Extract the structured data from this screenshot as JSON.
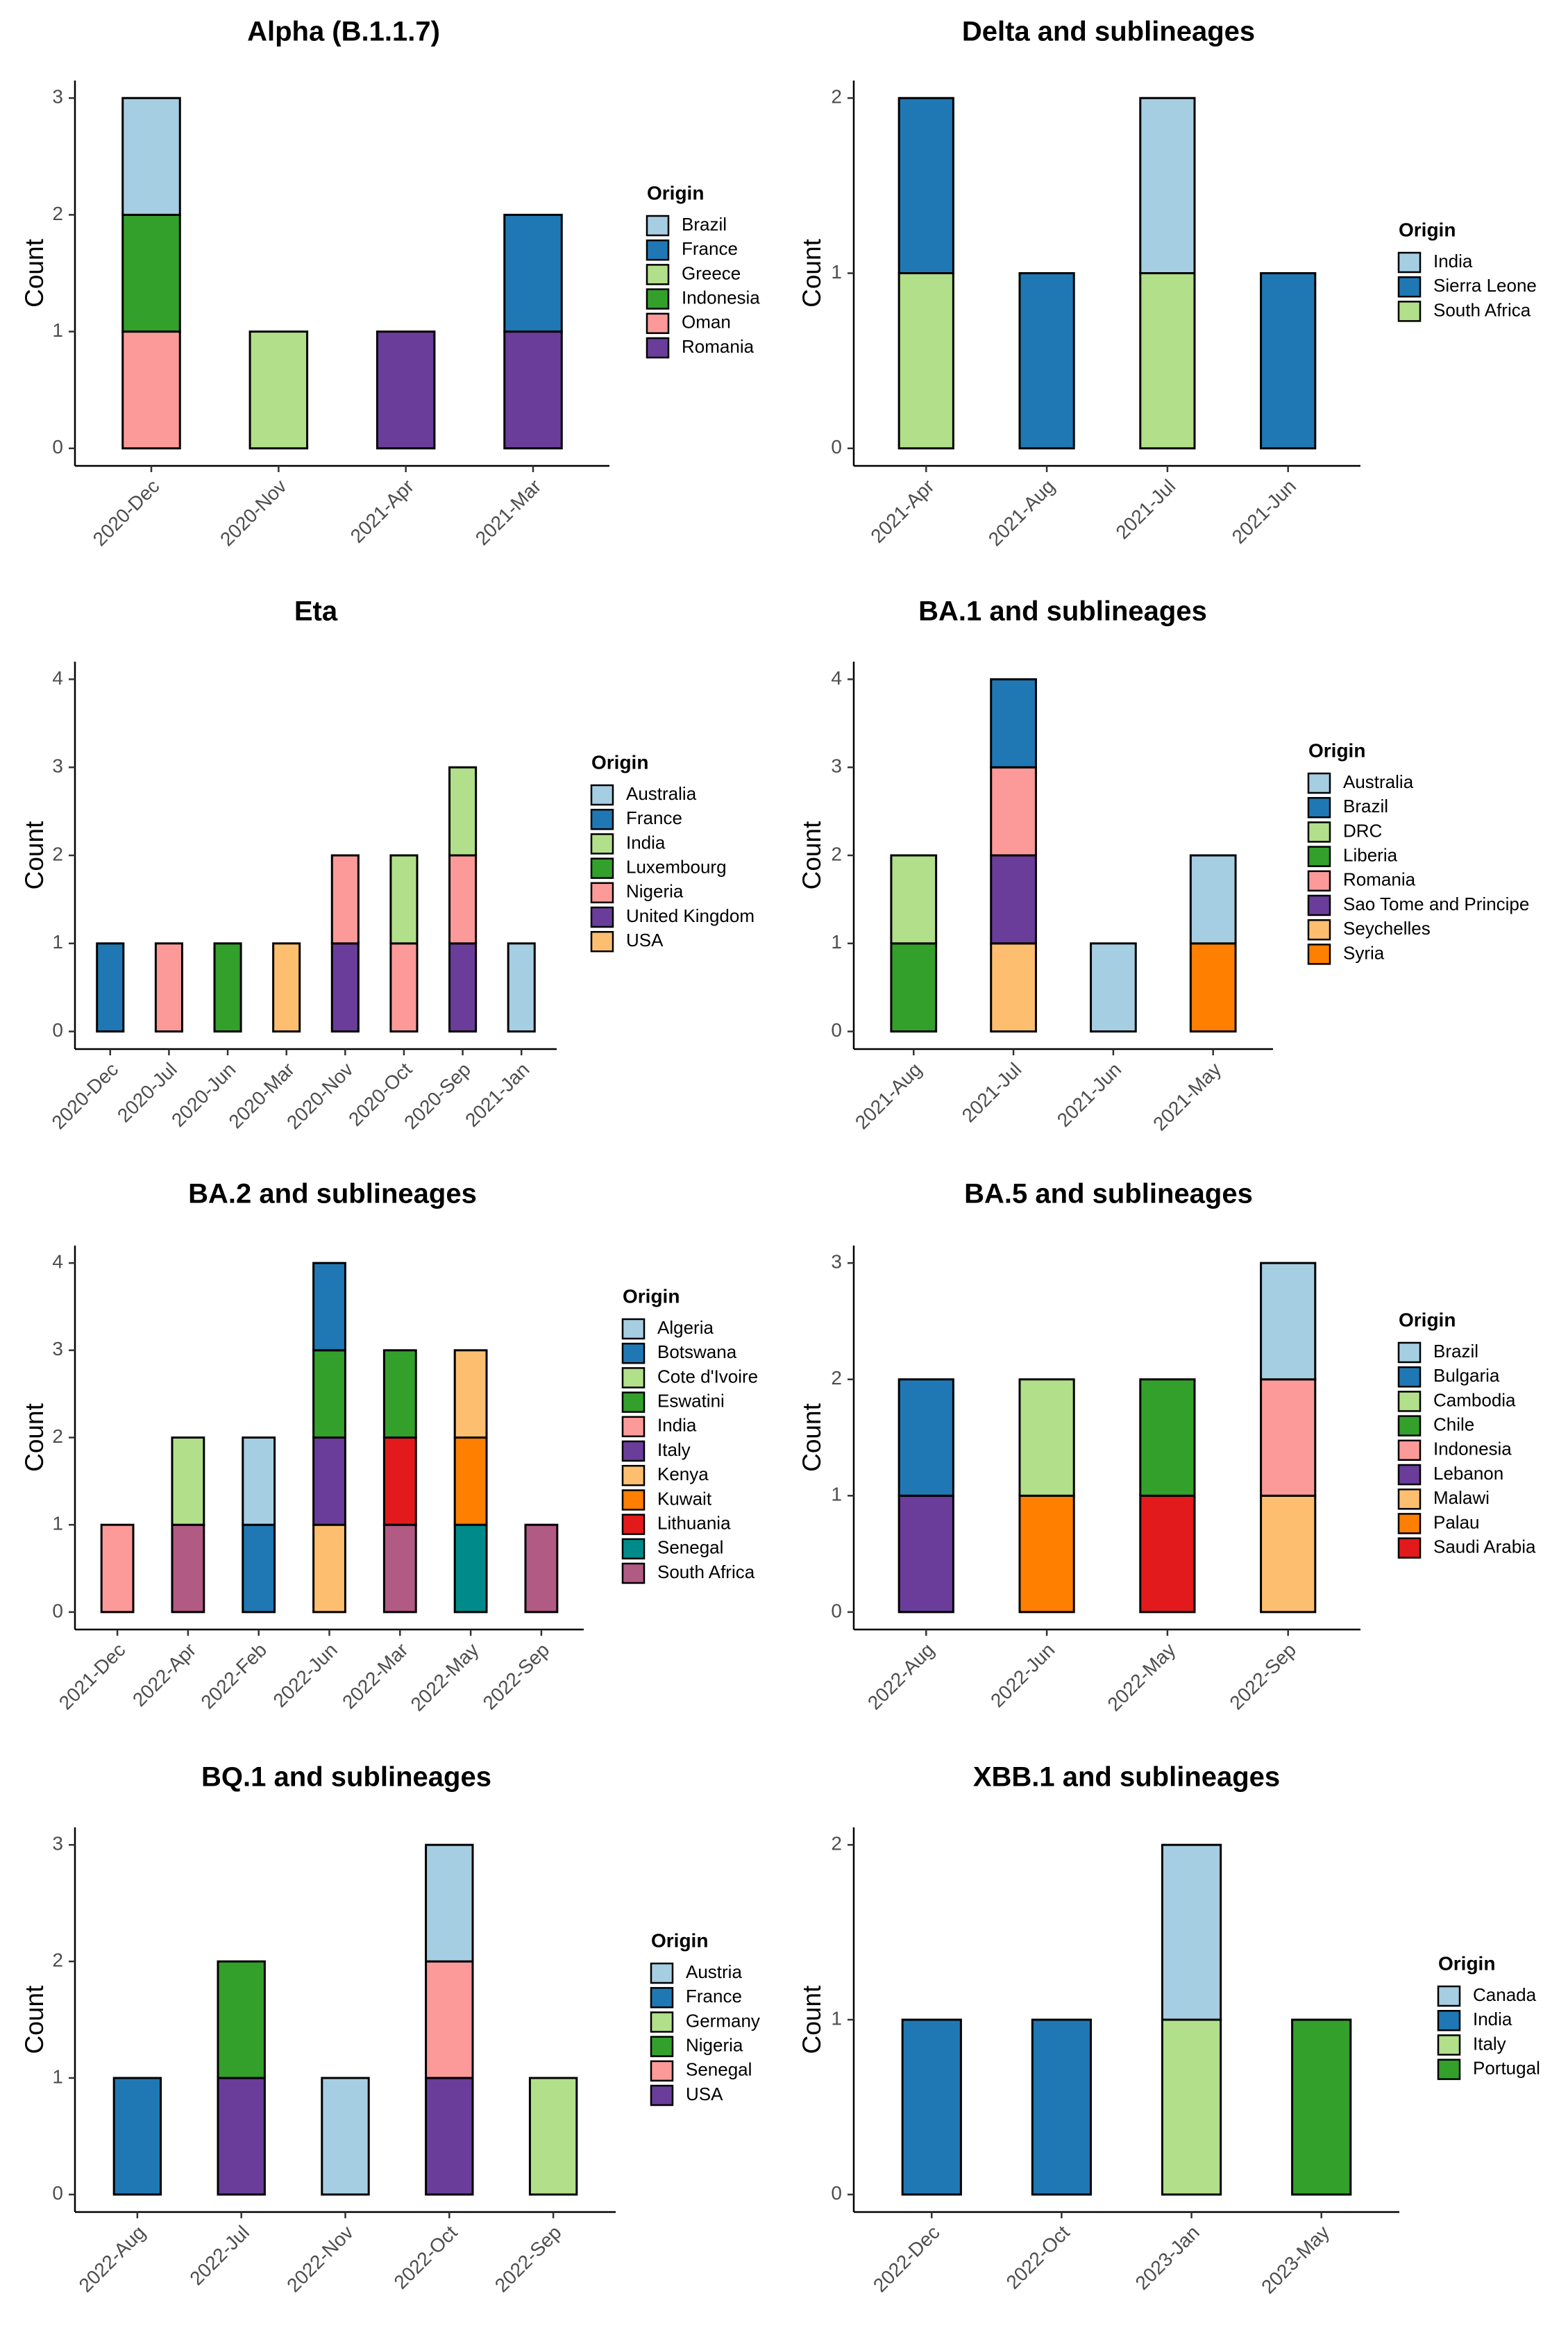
{
  "chart_data": [
    {
      "type": "bar",
      "stacked": true,
      "title": "Alpha (B.1.1.7)",
      "ylabel": "Count",
      "xlabel": "",
      "ylim": [
        0,
        3
      ],
      "yticks": [
        0,
        1,
        2,
        3
      ],
      "categories": [
        "2020-Dec",
        "2020-Nov",
        "2021-Apr",
        "2021-Mar"
      ],
      "legend_title": "Origin",
      "legend": [
        {
          "name": "Brazil",
          "color": "#a6cee3"
        },
        {
          "name": "France",
          "color": "#1f78b4"
        },
        {
          "name": "Greece",
          "color": "#b2df8a"
        },
        {
          "name": "Indonesia",
          "color": "#33a02c"
        },
        {
          "name": "Oman",
          "color": "#fb9a99"
        },
        {
          "name": "Romania",
          "color": "#6a3d9a"
        }
      ],
      "series": [
        {
          "name": "Brazil",
          "values": [
            1,
            0,
            0,
            0
          ]
        },
        {
          "name": "France",
          "values": [
            0,
            0,
            0,
            1
          ]
        },
        {
          "name": "Greece",
          "values": [
            0,
            1,
            0,
            0
          ]
        },
        {
          "name": "Indonesia",
          "values": [
            1,
            0,
            0,
            0
          ]
        },
        {
          "name": "Oman",
          "values": [
            1,
            0,
            0,
            0
          ]
        },
        {
          "name": "Romania",
          "values": [
            0,
            0,
            1,
            1
          ]
        }
      ]
    },
    {
      "type": "bar",
      "stacked": true,
      "title": "Delta and sublineages",
      "ylabel": "Count",
      "xlabel": "",
      "ylim": [
        0,
        2
      ],
      "yticks": [
        0,
        1,
        2
      ],
      "categories": [
        "2021-Apr",
        "2021-Aug",
        "2021-Jul",
        "2021-Jun"
      ],
      "legend_title": "Origin",
      "legend": [
        {
          "name": "India",
          "color": "#a6cee3"
        },
        {
          "name": "Sierra Leone",
          "color": "#1f78b4"
        },
        {
          "name": "South Africa",
          "color": "#b2df8a"
        }
      ],
      "series": [
        {
          "name": "India",
          "values": [
            0,
            0,
            1,
            0
          ]
        },
        {
          "name": "Sierra Leone",
          "values": [
            1,
            1,
            0,
            1
          ]
        },
        {
          "name": "South Africa",
          "values": [
            1,
            0,
            1,
            0
          ]
        }
      ]
    },
    {
      "type": "bar",
      "stacked": true,
      "title": "Eta",
      "ylabel": "Count",
      "xlabel": "",
      "ylim": [
        0,
        4
      ],
      "yticks": [
        0,
        1,
        2,
        3,
        4
      ],
      "categories": [
        "2020-Dec",
        "2020-Jul",
        "2020-Jun",
        "2020-Mar",
        "2020-Nov",
        "2020-Oct",
        "2020-Sep",
        "2021-Jan"
      ],
      "legend_title": "Origin",
      "legend": [
        {
          "name": "Australia",
          "color": "#a6cee3"
        },
        {
          "name": "France",
          "color": "#1f78b4"
        },
        {
          "name": "India",
          "color": "#b2df8a"
        },
        {
          "name": "Luxembourg",
          "color": "#33a02c"
        },
        {
          "name": "Nigeria",
          "color": "#fb9a99"
        },
        {
          "name": "United Kingdom",
          "color": "#6a3d9a"
        },
        {
          "name": "USA",
          "color": "#fdbf6f"
        }
      ],
      "series": [
        {
          "name": "Australia",
          "values": [
            0,
            0,
            0,
            0,
            0,
            0,
            0,
            1
          ]
        },
        {
          "name": "France",
          "values": [
            1,
            0,
            0,
            0,
            0,
            0,
            0,
            0
          ]
        },
        {
          "name": "India",
          "values": [
            0,
            0,
            0,
            0,
            0,
            1,
            1,
            0
          ]
        },
        {
          "name": "Luxembourg",
          "values": [
            0,
            0,
            1,
            0,
            0,
            0,
            0,
            0
          ]
        },
        {
          "name": "Nigeria",
          "values": [
            0,
            1,
            0,
            0,
            1,
            1,
            1,
            0
          ]
        },
        {
          "name": "United Kingdom",
          "values": [
            0,
            0,
            0,
            0,
            1,
            0,
            1,
            0
          ]
        },
        {
          "name": "USA",
          "values": [
            0,
            0,
            0,
            1,
            0,
            0,
            0,
            0
          ]
        }
      ]
    },
    {
      "type": "bar",
      "stacked": true,
      "title": "BA.1 and sublineages",
      "ylabel": "Count",
      "xlabel": "",
      "ylim": [
        0,
        4
      ],
      "yticks": [
        0,
        1,
        2,
        3,
        4
      ],
      "categories": [
        "2021-Aug",
        "2021-Jul",
        "2021-Jun",
        "2021-May"
      ],
      "legend_title": "Origin",
      "legend": [
        {
          "name": "Australia",
          "color": "#a6cee3"
        },
        {
          "name": "Brazil",
          "color": "#1f78b4"
        },
        {
          "name": "DRC",
          "color": "#b2df8a"
        },
        {
          "name": "Liberia",
          "color": "#33a02c"
        },
        {
          "name": "Romania",
          "color": "#fb9a99"
        },
        {
          "name": "Sao Tome and Principe",
          "color": "#6a3d9a"
        },
        {
          "name": "Seychelles",
          "color": "#fdbf6f"
        },
        {
          "name": "Syria",
          "color": "#ff7f00"
        }
      ],
      "series": [
        {
          "name": "Australia",
          "values": [
            0,
            0,
            1,
            1
          ]
        },
        {
          "name": "Brazil",
          "values": [
            0,
            1,
            0,
            0
          ]
        },
        {
          "name": "DRC",
          "values": [
            1,
            0,
            0,
            0
          ]
        },
        {
          "name": "Liberia",
          "values": [
            1,
            0,
            0,
            0
          ]
        },
        {
          "name": "Romania",
          "values": [
            0,
            1,
            0,
            0
          ]
        },
        {
          "name": "Sao Tome and Principe",
          "values": [
            0,
            1,
            0,
            0
          ]
        },
        {
          "name": "Seychelles",
          "values": [
            0,
            1,
            0,
            0
          ]
        },
        {
          "name": "Syria",
          "values": [
            0,
            0,
            0,
            1
          ]
        }
      ]
    },
    {
      "type": "bar",
      "stacked": true,
      "title": "BA.2 and sublineages",
      "ylabel": "Count",
      "xlabel": "",
      "ylim": [
        0,
        4
      ],
      "yticks": [
        0,
        1,
        2,
        3,
        4
      ],
      "categories": [
        "2021-Dec",
        "2022-Apr",
        "2022-Feb",
        "2022-Jun",
        "2022-Mar",
        "2022-May",
        "2022-Sep"
      ],
      "legend_title": "Origin",
      "legend": [
        {
          "name": "Algeria",
          "color": "#a6cee3"
        },
        {
          "name": "Botswana",
          "color": "#1f78b4"
        },
        {
          "name": "Cote d'Ivoire",
          "color": "#b2df8a"
        },
        {
          "name": "Eswatini",
          "color": "#33a02c"
        },
        {
          "name": "India",
          "color": "#fb9a99"
        },
        {
          "name": "Italy",
          "color": "#6a3d9a"
        },
        {
          "name": "Kenya",
          "color": "#fdbf6f"
        },
        {
          "name": "Kuwait",
          "color": "#ff7f00"
        },
        {
          "name": "Lithuania",
          "color": "#e31a1c"
        },
        {
          "name": "Senegal",
          "color": "#008b8b"
        },
        {
          "name": "South Africa",
          "color": "#b15a84"
        }
      ],
      "series": [
        {
          "name": "Algeria",
          "values": [
            0,
            0,
            1,
            0,
            0,
            0,
            0
          ]
        },
        {
          "name": "Botswana",
          "values": [
            0,
            0,
            1,
            1,
            0,
            0,
            0
          ]
        },
        {
          "name": "Cote d'Ivoire",
          "values": [
            0,
            1,
            0,
            0,
            0,
            0,
            0
          ]
        },
        {
          "name": "Eswatini",
          "values": [
            0,
            0,
            0,
            1,
            1,
            0,
            0
          ]
        },
        {
          "name": "India",
          "values": [
            1,
            0,
            0,
            0,
            0,
            0,
            0
          ]
        },
        {
          "name": "Italy",
          "values": [
            0,
            0,
            0,
            1,
            0,
            0,
            0
          ]
        },
        {
          "name": "Kenya",
          "values": [
            0,
            0,
            0,
            1,
            0,
            1,
            0
          ]
        },
        {
          "name": "Kuwait",
          "values": [
            0,
            0,
            0,
            0,
            0,
            1,
            0
          ]
        },
        {
          "name": "Lithuania",
          "values": [
            0,
            0,
            0,
            0,
            1,
            0,
            0
          ]
        },
        {
          "name": "Senegal",
          "values": [
            0,
            0,
            0,
            0,
            0,
            1,
            0
          ]
        },
        {
          "name": "South Africa",
          "values": [
            0,
            1,
            0,
            0,
            1,
            0,
            1
          ]
        }
      ]
    },
    {
      "type": "bar",
      "stacked": true,
      "title": "BA.5 and sublineages",
      "ylabel": "Count",
      "xlabel": "",
      "ylim": [
        0,
        3
      ],
      "yticks": [
        0,
        1,
        2,
        3
      ],
      "categories": [
        "2022-Aug",
        "2022-Jun",
        "2022-May",
        "2022-Sep"
      ],
      "legend_title": "Origin",
      "legend": [
        {
          "name": "Brazil",
          "color": "#a6cee3"
        },
        {
          "name": "Bulgaria",
          "color": "#1f78b4"
        },
        {
          "name": "Cambodia",
          "color": "#b2df8a"
        },
        {
          "name": "Chile",
          "color": "#33a02c"
        },
        {
          "name": "Indonesia",
          "color": "#fb9a99"
        },
        {
          "name": "Lebanon",
          "color": "#6a3d9a"
        },
        {
          "name": "Malawi",
          "color": "#fdbf6f"
        },
        {
          "name": "Palau",
          "color": "#ff7f00"
        },
        {
          "name": "Saudi Arabia",
          "color": "#e31a1c"
        }
      ],
      "series": [
        {
          "name": "Brazil",
          "values": [
            0,
            0,
            0,
            1
          ]
        },
        {
          "name": "Bulgaria",
          "values": [
            1,
            0,
            0,
            0
          ]
        },
        {
          "name": "Cambodia",
          "values": [
            0,
            1,
            0,
            0
          ]
        },
        {
          "name": "Chile",
          "values": [
            0,
            0,
            1,
            0
          ]
        },
        {
          "name": "Indonesia",
          "values": [
            0,
            0,
            0,
            1
          ]
        },
        {
          "name": "Lebanon",
          "values": [
            1,
            0,
            0,
            0
          ]
        },
        {
          "name": "Malawi",
          "values": [
            0,
            0,
            0,
            1
          ]
        },
        {
          "name": "Palau",
          "values": [
            0,
            1,
            0,
            0
          ]
        },
        {
          "name": "Saudi Arabia",
          "values": [
            0,
            0,
            1,
            0
          ]
        }
      ]
    },
    {
      "type": "bar",
      "stacked": true,
      "title": "BQ.1 and sublineages",
      "ylabel": "Count",
      "xlabel": "",
      "ylim": [
        0,
        3
      ],
      "yticks": [
        0,
        1,
        2,
        3
      ],
      "categories": [
        "2022-Aug",
        "2022-Jul",
        "2022-Nov",
        "2022-Oct",
        "2022-Sep"
      ],
      "legend_title": "Origin",
      "legend": [
        {
          "name": "Austria",
          "color": "#a6cee3"
        },
        {
          "name": "France",
          "color": "#1f78b4"
        },
        {
          "name": "Germany",
          "color": "#b2df8a"
        },
        {
          "name": "Nigeria",
          "color": "#33a02c"
        },
        {
          "name": "Senegal",
          "color": "#fb9a99"
        },
        {
          "name": "USA",
          "color": "#6a3d9a"
        }
      ],
      "series": [
        {
          "name": "Austria",
          "values": [
            0,
            0,
            1,
            1,
            0
          ]
        },
        {
          "name": "France",
          "values": [
            1,
            0,
            0,
            0,
            0
          ]
        },
        {
          "name": "Germany",
          "values": [
            0,
            0,
            0,
            0,
            1
          ]
        },
        {
          "name": "Nigeria",
          "values": [
            0,
            1,
            0,
            0,
            0
          ]
        },
        {
          "name": "Senegal",
          "values": [
            0,
            0,
            0,
            1,
            0
          ]
        },
        {
          "name": "USA",
          "values": [
            0,
            1,
            0,
            1,
            0
          ]
        }
      ]
    },
    {
      "type": "bar",
      "stacked": true,
      "title": "XBB.1 and sublineages",
      "ylabel": "Count",
      "xlabel": "",
      "ylim": [
        0,
        2
      ],
      "yticks": [
        0,
        1,
        2
      ],
      "categories": [
        "2022-Dec",
        "2022-Oct",
        "2023-Jan",
        "2023-May"
      ],
      "legend_title": "Origin",
      "legend": [
        {
          "name": "Canada",
          "color": "#a6cee3"
        },
        {
          "name": "India",
          "color": "#1f78b4"
        },
        {
          "name": "Italy",
          "color": "#b2df8a"
        },
        {
          "name": "Portugal",
          "color": "#33a02c"
        }
      ],
      "series": [
        {
          "name": "Canada",
          "values": [
            0,
            0,
            1,
            0
          ]
        },
        {
          "name": "India",
          "values": [
            1,
            1,
            0,
            0
          ]
        },
        {
          "name": "Italy",
          "values": [
            0,
            0,
            1,
            0
          ]
        },
        {
          "name": "Portugal",
          "values": [
            0,
            0,
            0,
            1
          ]
        }
      ]
    }
  ]
}
